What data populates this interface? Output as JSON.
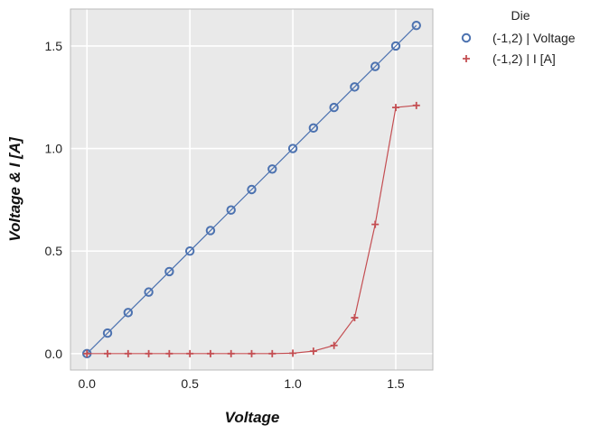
{
  "chart_data": {
    "type": "line",
    "xlabel": "Voltage",
    "ylabel": "Voltage & I [A]",
    "xlim": [
      -0.08,
      1.68
    ],
    "ylim": [
      -0.08,
      1.68
    ],
    "xticks": [
      0.0,
      0.5,
      1.0,
      1.5
    ],
    "yticks": [
      0.0,
      0.5,
      1.0,
      1.5
    ],
    "xtick_labels": [
      "0.0",
      "0.5",
      "1.0",
      "1.5"
    ],
    "ytick_labels": [
      "0.0",
      "0.5",
      "1.0",
      "1.5"
    ],
    "grid": true,
    "background": "#e9e9e9",
    "legend": {
      "title": "Die",
      "placement": "outside-top-right"
    },
    "x": [
      0.0,
      0.1,
      0.2,
      0.3,
      0.4,
      0.5,
      0.6,
      0.7,
      0.8,
      0.9,
      1.0,
      1.1,
      1.2,
      1.3,
      1.4,
      1.5,
      1.6
    ],
    "series": [
      {
        "name": "(-1,2) | Voltage",
        "marker": "circle",
        "color": "#4c72b0",
        "values": [
          0.0,
          0.1,
          0.2,
          0.3,
          0.4,
          0.5,
          0.6,
          0.7,
          0.8,
          0.9,
          1.0,
          1.1,
          1.2,
          1.3,
          1.4,
          1.5,
          1.6
        ]
      },
      {
        "name": "(-1,2) | I [A]",
        "marker": "plus",
        "color": "#c44e52",
        "values": [
          0.0,
          0.0,
          0.0,
          0.0,
          0.0,
          0.0,
          0.0,
          0.0,
          0.0,
          0.0,
          0.002,
          0.012,
          0.04,
          0.175,
          0.63,
          1.2,
          1.21
        ]
      }
    ]
  }
}
